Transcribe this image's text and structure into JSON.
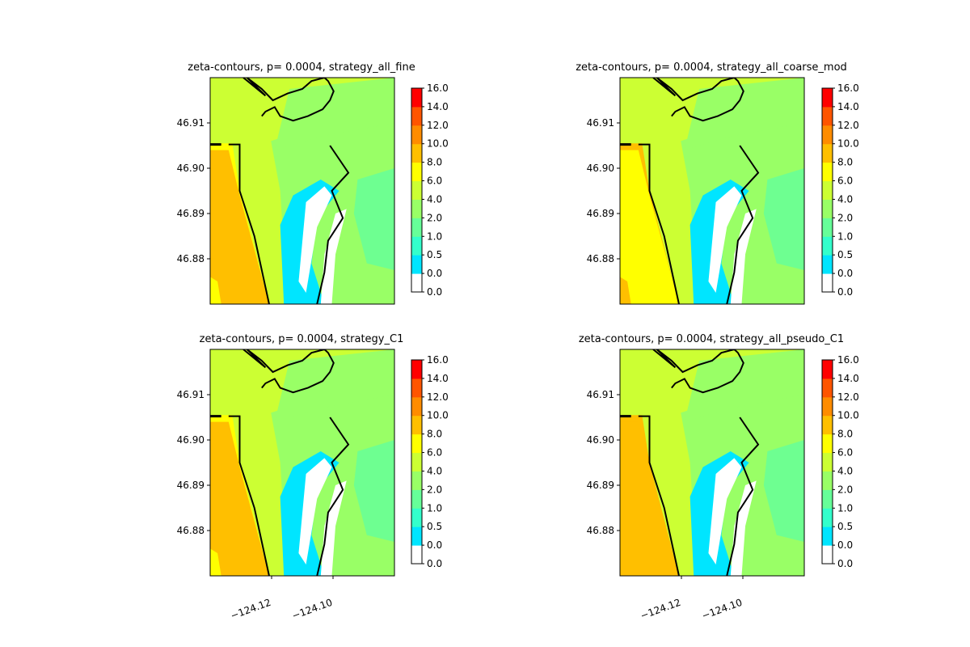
{
  "chart_data": {
    "type": "heatmap",
    "colorbar": {
      "boundaries": [
        0.0,
        0.0,
        0.5,
        1.0,
        2.0,
        4.0,
        6.0,
        8.0,
        10.0,
        12.0,
        14.0,
        16.0
      ],
      "tick_labels": [
        "0.0",
        "0.0",
        "0.5",
        "1.0",
        "2.0",
        "4.0",
        "6.0",
        "8.0",
        "10.0",
        "12.0",
        "14.0",
        "16.0"
      ],
      "colors": [
        "#ffffff",
        "#00e5ff",
        "#33ffcc",
        "#66ff99",
        "#99ff66",
        "#ccff33",
        "#ffff00",
        "#ffbf00",
        "#ff8c00",
        "#ff5500",
        "#ff0000"
      ]
    },
    "axes": {
      "y_ticks": [
        46.88,
        46.89,
        46.9,
        46.91
      ],
      "y_tick_labels": [
        "46.88",
        "46.89",
        "46.90",
        "46.91"
      ],
      "x_ticks": [
        -124.12,
        -124.1
      ],
      "x_tick_labels": [
        "−124.12",
        "−124.10"
      ],
      "xlim": [
        -124.14,
        -124.08
      ],
      "ylim": [
        46.87,
        46.92
      ]
    },
    "panels": [
      {
        "title": "zeta-contours, p= 0.0004, strategy_all_fine",
        "offshore_level": "8.0-10.0",
        "inner_nearshore_level": "6.0-8.0",
        "bay_level": "2.0-4.0",
        "open_sea_level": "4.0-6.0",
        "show_x_ticks": false
      },
      {
        "title": "zeta-contours, p= 0.0004, strategy_all_coarse_mod",
        "offshore_level": "6.0-8.0",
        "inner_nearshore_level": "8.0-10.0",
        "bay_level": "2.0-4.0",
        "open_sea_level": "4.0-6.0",
        "show_x_ticks": false
      },
      {
        "title": "zeta-contours, p= 0.0004, strategy_C1",
        "offshore_level": "8.0-10.0",
        "inner_nearshore_level": "6.0-8.0",
        "bay_level": "2.0-4.0",
        "open_sea_level": "4.0-6.0",
        "show_x_ticks": true
      },
      {
        "title": "zeta-contours, p= 0.0004, strategy_all_pseudo_C1",
        "offshore_level": "8.0-10.0",
        "inner_nearshore_level": "8.0-10.0",
        "bay_level": "2.0-4.0",
        "open_sea_level": "4.0-6.0",
        "show_x_ticks": true
      }
    ]
  }
}
